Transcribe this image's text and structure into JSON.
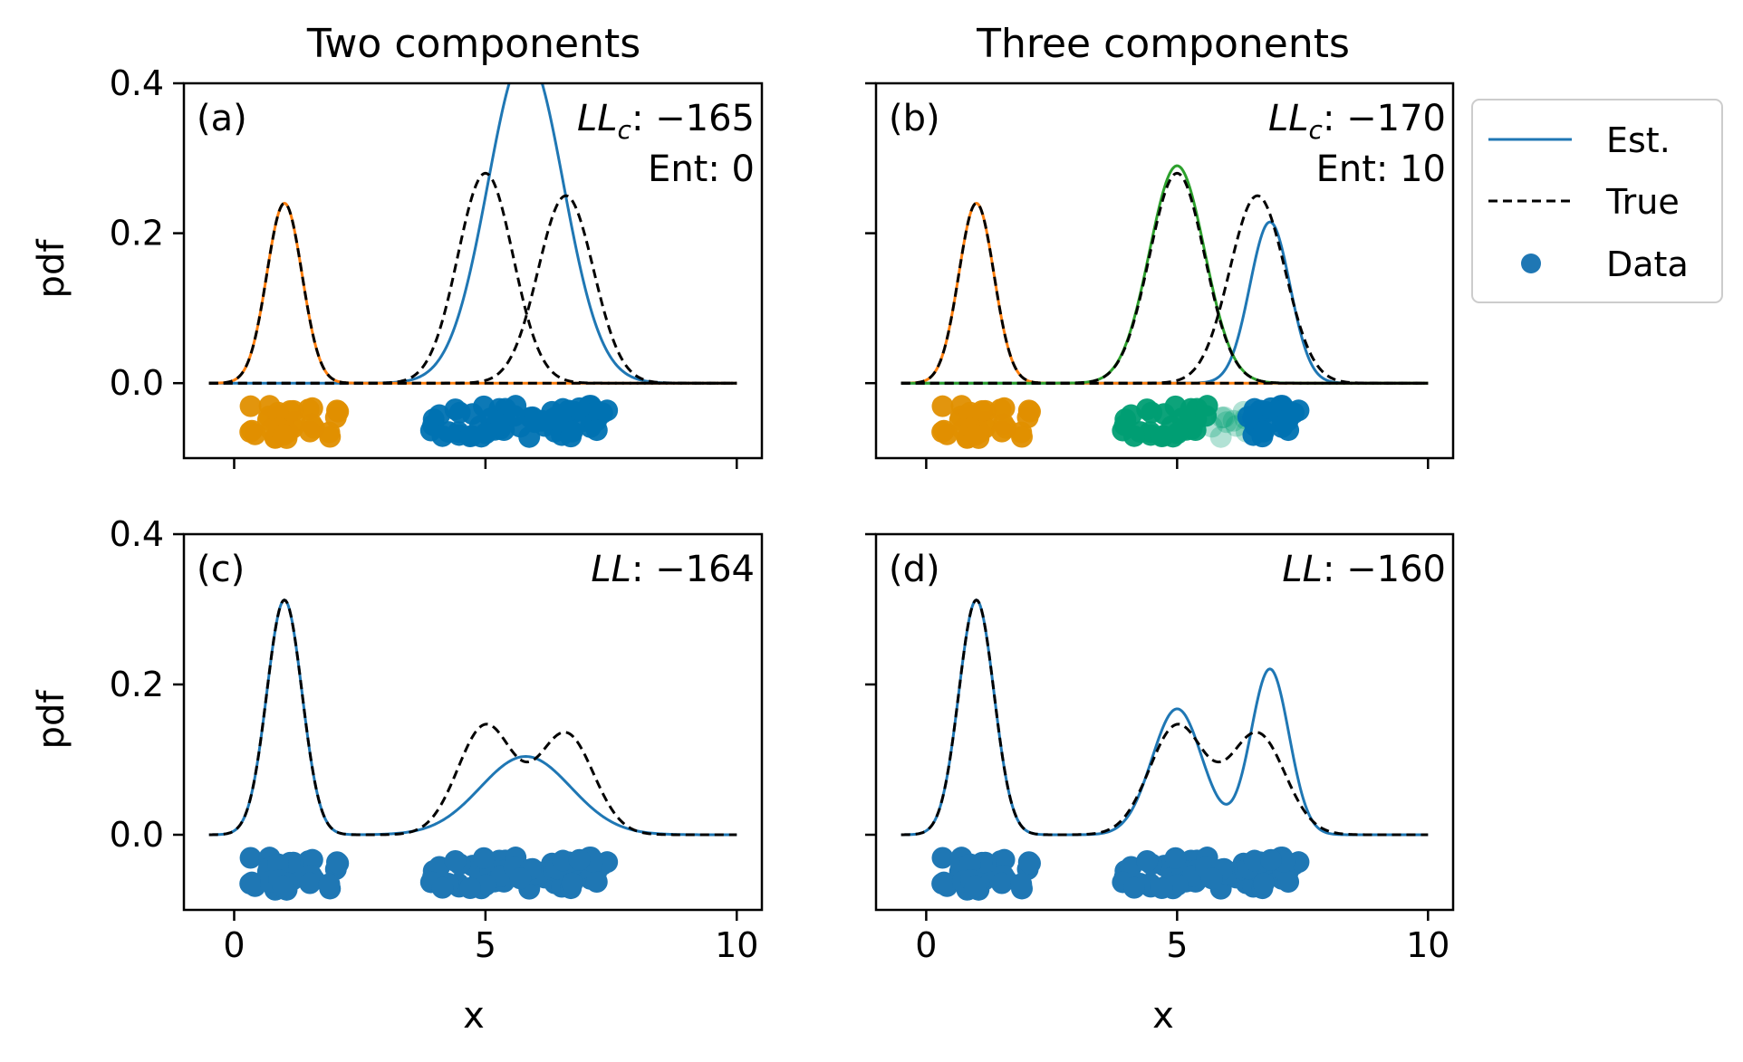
{
  "figure": {
    "col_titles": [
      "Two components",
      "Three components"
    ],
    "ylabel": "pdf",
    "xlabel": "x"
  },
  "legend": {
    "placement": "right of top-right panel",
    "items": [
      {
        "label": "Est.",
        "kind": "solid-line",
        "color": "#1f77b4"
      },
      {
        "label": "True",
        "kind": "dashed-line",
        "color": "#000000"
      },
      {
        "label": "Data",
        "kind": "marker",
        "color": "#1f77b4"
      }
    ]
  },
  "colors": {
    "est": "#1f77b4",
    "true": "#000000",
    "cluster_orange": "#e08f00",
    "cluster_green": "#009e73",
    "cluster_blue": "#0072b2",
    "orange_component": "#ff7f0e",
    "green_component": "#2ca02c"
  },
  "chart_data": [
    {
      "id": "a",
      "type": "line",
      "panel_label": "(a)",
      "stat_lines": [
        {
          "prefix": "LL",
          "sub": "c",
          "text": ": −165"
        },
        {
          "text": "Ent: 0"
        }
      ],
      "xlim": [
        -1,
        10.5
      ],
      "ylim": [
        -0.1,
        0.4
      ],
      "xticks": [
        0,
        5,
        10
      ],
      "yticks": [
        0.0,
        0.2,
        0.4
      ],
      "show_xticklabels": false,
      "show_yticklabels": true,
      "series": [
        {
          "name": "Est.",
          "style": "solid",
          "color": "#1f77b4",
          "components": [
            [
              5.8,
              0.75,
              1.0
            ]
          ],
          "scale": 0.44
        },
        {
          "style": "solid",
          "color": "#ff7f0e",
          "components": [
            [
              1.0,
              0.35,
              1.0
            ]
          ],
          "scale": 0.24
        },
        {
          "name": "True",
          "style": "dashed",
          "color": "#000000",
          "components": [
            [
              1.0,
              0.35,
              1.0
            ]
          ],
          "scale": 0.24
        },
        {
          "style": "dashed",
          "color": "#000000",
          "components": [
            [
              5.0,
              0.55,
              1.0
            ]
          ],
          "scale": 0.28
        },
        {
          "style": "dashed",
          "color": "#000000",
          "components": [
            [
              6.6,
              0.55,
              1.0
            ]
          ],
          "scale": 0.25
        }
      ],
      "scatter": [
        {
          "name": "Data",
          "color": "#e08f00",
          "alpha": 0.95,
          "mode": "cluster1"
        },
        {
          "color": "#0072b2",
          "alpha": 0.95,
          "mode": "cluster23"
        }
      ]
    },
    {
      "id": "b",
      "type": "line",
      "panel_label": "(b)",
      "stat_lines": [
        {
          "prefix": "LL",
          "sub": "c",
          "text": ": −170"
        },
        {
          "text": "Ent: 10"
        }
      ],
      "xlim": [
        -1,
        10.5
      ],
      "ylim": [
        -0.1,
        0.4
      ],
      "xticks": [
        0,
        5,
        10
      ],
      "yticks": [
        0.0,
        0.2,
        0.4
      ],
      "show_xticklabels": false,
      "show_yticklabels": false,
      "series": [
        {
          "name": "Est.",
          "style": "solid",
          "color": "#1f77b4",
          "components": [
            [
              6.85,
              0.4,
              1.0
            ]
          ],
          "scale": 0.215
        },
        {
          "style": "solid",
          "color": "#ff7f0e",
          "components": [
            [
              1.0,
              0.35,
              1.0
            ]
          ],
          "scale": 0.24
        },
        {
          "style": "solid",
          "color": "#2ca02c",
          "components": [
            [
              5.0,
              0.55,
              1.0
            ]
          ],
          "scale": 0.29
        },
        {
          "name": "True",
          "style": "dashed",
          "color": "#000000",
          "components": [
            [
              1.0,
              0.35,
              1.0
            ]
          ],
          "scale": 0.24
        },
        {
          "style": "dashed",
          "color": "#000000",
          "components": [
            [
              5.0,
              0.55,
              1.0
            ]
          ],
          "scale": 0.28
        },
        {
          "style": "dashed",
          "color": "#000000",
          "components": [
            [
              6.6,
              0.55,
              1.0
            ]
          ],
          "scale": 0.25
        }
      ],
      "scatter": [
        {
          "name": "Data",
          "color": "#e08f00",
          "alpha": 0.95,
          "mode": "cluster1"
        },
        {
          "color": "#009e73",
          "alpha": 0.95,
          "mode": "cluster2"
        },
        {
          "color": "#009e73",
          "alpha": 0.3,
          "mode": "overlap"
        },
        {
          "color": "#0072b2",
          "alpha": 0.95,
          "mode": "cluster3"
        }
      ]
    },
    {
      "id": "c",
      "type": "line",
      "panel_label": "(c)",
      "stat_lines": [
        {
          "prefix": "LL",
          "text": ": −164"
        }
      ],
      "xlim": [
        -1,
        10.5
      ],
      "ylim": [
        -0.1,
        0.4
      ],
      "xticks": [
        0,
        5,
        10
      ],
      "yticks": [
        0.0,
        0.2,
        0.4
      ],
      "show_xticklabels": true,
      "show_yticklabels": true,
      "series": [
        {
          "name": "Est.",
          "style": "solid",
          "color": "#1f77b4",
          "components": [
            [
              1.0,
              0.35,
              0.274
            ],
            [
              5.8,
              0.9,
              0.235
            ]
          ]
        },
        {
          "name": "True",
          "style": "dashed",
          "color": "#000000",
          "components": [
            [
              1.0,
              0.35,
              0.274
            ],
            [
              5.0,
              0.55,
              0.2
            ],
            [
              6.6,
              0.55,
              0.185
            ]
          ]
        }
      ],
      "scatter": [
        {
          "name": "Data",
          "color": "#1f77b4",
          "alpha": 1.0,
          "mode": "all"
        }
      ]
    },
    {
      "id": "d",
      "type": "line",
      "panel_label": "(d)",
      "stat_lines": [
        {
          "prefix": "LL",
          "text": ": −160"
        }
      ],
      "xlim": [
        -1,
        10.5
      ],
      "ylim": [
        -0.1,
        0.4
      ],
      "xticks": [
        0,
        5,
        10
      ],
      "yticks": [
        0.0,
        0.2,
        0.4
      ],
      "show_xticklabels": true,
      "show_yticklabels": false,
      "series": [
        {
          "name": "Est.",
          "style": "solid",
          "color": "#1f77b4",
          "components": [
            [
              1.0,
              0.35,
              0.274
            ],
            [
              5.0,
              0.5,
              0.21
            ],
            [
              6.85,
              0.38,
              0.21
            ]
          ]
        },
        {
          "name": "True",
          "style": "dashed",
          "color": "#000000",
          "components": [
            [
              1.0,
              0.35,
              0.274
            ],
            [
              5.0,
              0.55,
              0.2
            ],
            [
              6.6,
              0.55,
              0.185
            ]
          ]
        }
      ],
      "scatter": [
        {
          "name": "Data",
          "color": "#1f77b4",
          "alpha": 1.0,
          "mode": "all"
        }
      ]
    }
  ]
}
